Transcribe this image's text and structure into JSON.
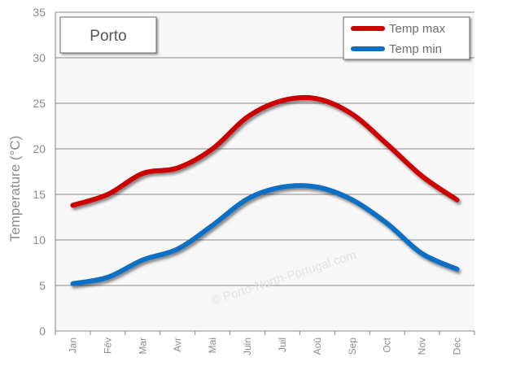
{
  "chart_data": {
    "type": "line",
    "title": "Porto",
    "ylabel": "Temperature (°C)",
    "xlabel": "",
    "categories": [
      "Jan",
      "Fév",
      "Mar",
      "Avr",
      "Mai",
      "Juin",
      "Juil",
      "Aoû",
      "Sep",
      "Oct",
      "Nov",
      "Déc"
    ],
    "ylim": [
      0,
      35
    ],
    "yticks": [
      0,
      5,
      10,
      15,
      20,
      25,
      30,
      35
    ],
    "grid": true,
    "legend_position": "top-right",
    "series": [
      {
        "name": "Temp max",
        "color": "#cc0000",
        "values": [
          13.8,
          15.0,
          17.3,
          17.9,
          20.0,
          23.5,
          25.3,
          25.5,
          23.8,
          20.5,
          17.0,
          14.4
        ]
      },
      {
        "name": "Temp min",
        "color": "#0d6fc4",
        "values": [
          5.2,
          5.9,
          7.8,
          9.0,
          11.6,
          14.5,
          15.8,
          15.8,
          14.4,
          11.8,
          8.5,
          6.8
        ]
      }
    ],
    "watermark": "© Porto-North-Portugal.com"
  }
}
